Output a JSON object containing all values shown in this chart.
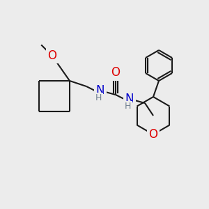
{
  "bg_color": "#ececec",
  "bond_color": "#1a1a1a",
  "bond_lw": 1.5,
  "figsize": [
    3.0,
    3.0
  ],
  "dpi": 100,
  "xlim": [
    0,
    300
  ],
  "ylim": [
    0,
    300
  ]
}
